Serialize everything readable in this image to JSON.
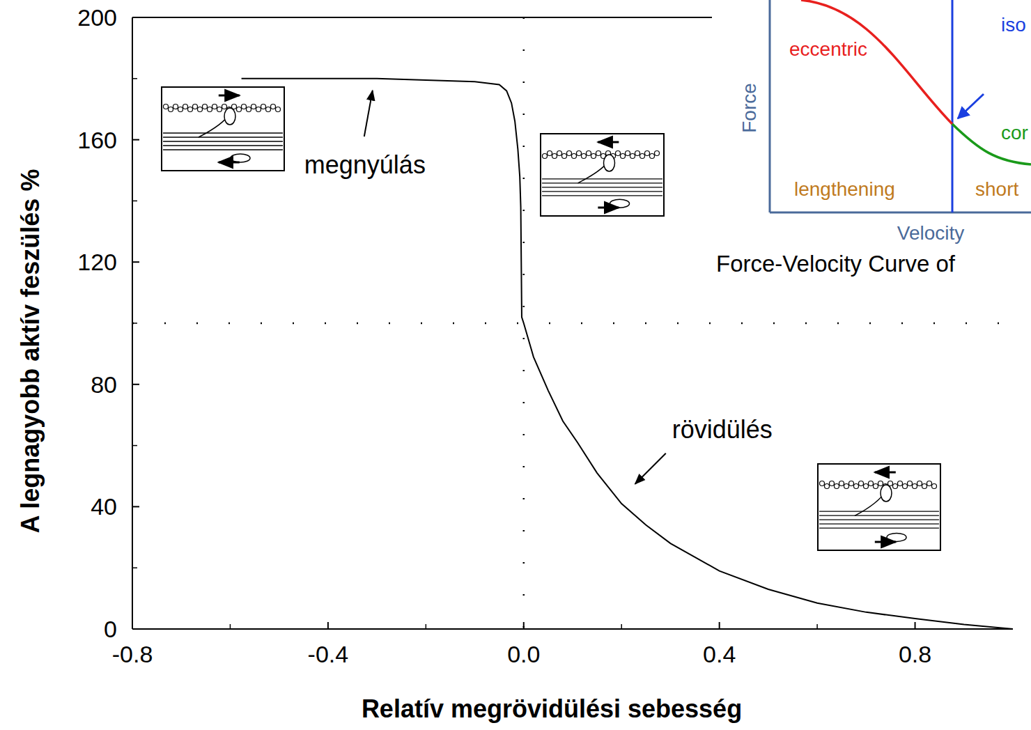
{
  "chart_data": {
    "type": "line",
    "xlabel": "Relatív megrövidülési sebesség",
    "ylabel": "A  legnagyobb aktív feszülés %",
    "x": [
      -0.577,
      -0.5,
      -0.4,
      -0.3,
      -0.2,
      -0.1,
      -0.05,
      -0.035,
      -0.025,
      -0.018,
      -0.012,
      -0.008,
      -0.006,
      -0.005,
      -0.004,
      0,
      0.02,
      0.05,
      0.08,
      0.11,
      0.15,
      0.2,
      0.25,
      0.3,
      0.35,
      0.4,
      0.5,
      0.6,
      0.7,
      0.8,
      0.9,
      1.0
    ],
    "series": [
      {
        "color": "#000000",
        "values": [
          180,
          180,
          180,
          180,
          179.5,
          179,
          178,
          176,
          172,
          166,
          157,
          148,
          138,
          120,
          102,
          100,
          89,
          78,
          68,
          61,
          51,
          41,
          34,
          28,
          23.5,
          19,
          13,
          8.5,
          5.5,
          3.4,
          1.5,
          0
        ]
      }
    ],
    "xlim": [
      -0.8,
      1.0
    ],
    "ylim": [
      0,
      200
    ],
    "xticks": [
      -0.8,
      -0.4,
      {
        "value": 0,
        "label": "0.0"
      },
      0.4,
      0.8
    ],
    "yticks": [
      0,
      40,
      80,
      120,
      160,
      200
    ],
    "grid": false,
    "ref_lines": {
      "x": [
        0
      ],
      "y": [
        100
      ]
    },
    "annotations": [
      {
        "text": "megnyúlás",
        "x": -0.309,
        "y": 177
      },
      {
        "text": "rövidülés",
        "x": 0.225,
        "y": 47
      }
    ],
    "inset": {
      "title": "Force-Velocity Curve of",
      "xlabel": "Velocity",
      "ylabel": "Force",
      "labels": [
        "eccentric",
        "iso",
        "cor",
        "lengthening",
        "short"
      ]
    }
  }
}
